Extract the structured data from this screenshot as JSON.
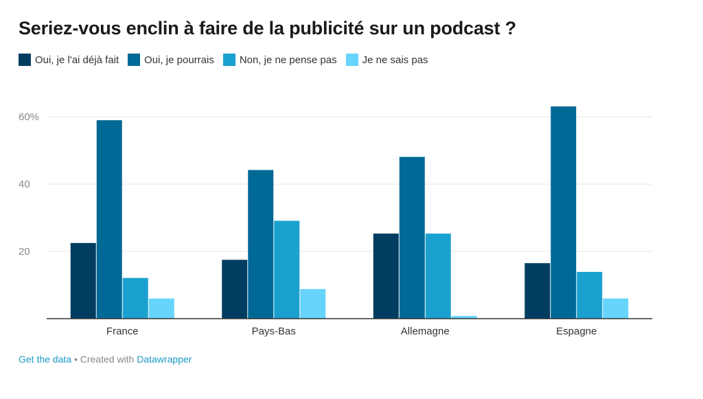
{
  "title": "Seriez-vous enclin à faire de la publicité sur un podcast ?",
  "colors": {
    "series": [
      "#003d60",
      "#006996",
      "#1ba1d0",
      "#67d4fb"
    ],
    "gridline": "#e4e4e4",
    "axis": "#333333",
    "link": "#1b9ac4"
  },
  "footer": {
    "get_data": "Get the data",
    "separator": " • Created with ",
    "datawrapper": "Datawrapper"
  },
  "chart_data": {
    "type": "bar",
    "title": "Seriez-vous enclin à faire de la publicité sur un podcast ?",
    "categories": [
      "France",
      "Pays-Bas",
      "Allemagne",
      "Espagne"
    ],
    "series": [
      {
        "name": "Oui, je l'ai déjà fait",
        "values": [
          22.5,
          17.5,
          25.3,
          16.5
        ]
      },
      {
        "name": "Oui, je pourrais",
        "values": [
          59,
          44.2,
          48.1,
          63.1
        ]
      },
      {
        "name": "Non, je ne pense pas",
        "values": [
          12.1,
          29.1,
          25.3,
          13.9
        ]
      },
      {
        "name": "Je ne sais pas",
        "values": [
          6,
          8.8,
          0.8,
          6
        ]
      }
    ],
    "y_ticks": [
      {
        "value": 20,
        "label": "20"
      },
      {
        "value": 40,
        "label": "40"
      },
      {
        "value": 60,
        "label": "60%"
      }
    ],
    "ylim": [
      0,
      63.1
    ],
    "xlabel": "",
    "ylabel": "",
    "grid": true,
    "legend_position": "top-left"
  }
}
